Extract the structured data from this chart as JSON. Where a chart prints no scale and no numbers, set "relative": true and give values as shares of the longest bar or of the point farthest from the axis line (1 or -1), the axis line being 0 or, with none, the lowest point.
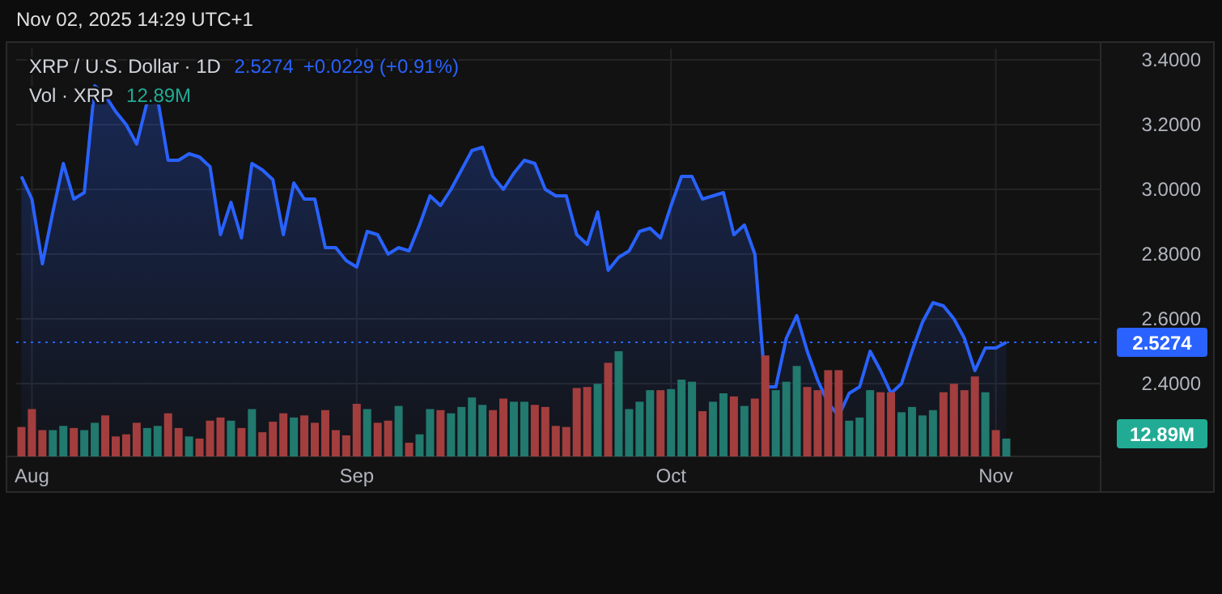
{
  "chart_data": [
    {
      "type": "area",
      "title": "XRP / U.S. Dollar · 1D",
      "annotations": [
        "Nov 02, 2025 14:29 UTC+1",
        "2.5274",
        "+0.0229 (+0.91%)"
      ],
      "x": [
        "2025-07-31",
        "2025-08-01",
        "2025-08-02",
        "2025-08-03",
        "2025-08-04",
        "2025-08-05",
        "2025-08-06",
        "2025-08-07",
        "2025-08-08",
        "2025-08-09",
        "2025-08-10",
        "2025-08-11",
        "2025-08-12",
        "2025-08-13",
        "2025-08-14",
        "2025-08-15",
        "2025-08-16",
        "2025-08-17",
        "2025-08-18",
        "2025-08-19",
        "2025-08-20",
        "2025-08-21",
        "2025-08-22",
        "2025-08-23",
        "2025-08-24",
        "2025-08-25",
        "2025-08-26",
        "2025-08-27",
        "2025-08-28",
        "2025-08-29",
        "2025-08-30",
        "2025-08-31",
        "2025-09-01",
        "2025-09-02",
        "2025-09-03",
        "2025-09-04",
        "2025-09-05",
        "2025-09-06",
        "2025-09-07",
        "2025-09-08",
        "2025-09-09",
        "2025-09-10",
        "2025-09-11",
        "2025-09-12",
        "2025-09-13",
        "2025-09-14",
        "2025-09-15",
        "2025-09-16",
        "2025-09-17",
        "2025-09-18",
        "2025-09-19",
        "2025-09-20",
        "2025-09-21",
        "2025-09-22",
        "2025-09-23",
        "2025-09-24",
        "2025-09-25",
        "2025-09-26",
        "2025-09-27",
        "2025-09-28",
        "2025-09-29",
        "2025-09-30",
        "2025-10-01",
        "2025-10-02",
        "2025-10-03",
        "2025-10-04",
        "2025-10-05",
        "2025-10-06",
        "2025-10-07",
        "2025-10-08",
        "2025-10-09",
        "2025-10-10",
        "2025-10-11",
        "2025-10-12",
        "2025-10-13",
        "2025-10-14",
        "2025-10-15",
        "2025-10-16",
        "2025-10-17",
        "2025-10-18",
        "2025-10-19",
        "2025-10-20",
        "2025-10-21",
        "2025-10-22",
        "2025-10-23",
        "2025-10-24",
        "2025-10-25",
        "2025-10-26",
        "2025-10-27",
        "2025-10-28",
        "2025-10-29",
        "2025-10-30",
        "2025-10-31",
        "2025-11-01",
        "2025-11-02"
      ],
      "series": [
        {
          "color": "#2962ff",
          "values": [
            3.04,
            2.97,
            2.77,
            2.93,
            3.08,
            2.97,
            2.99,
            3.32,
            3.29,
            3.24,
            3.2,
            3.14,
            3.27,
            3.28,
            3.09,
            3.09,
            3.11,
            3.1,
            3.07,
            2.86,
            2.96,
            2.85,
            3.08,
            3.06,
            3.03,
            2.86,
            3.02,
            2.97,
            2.97,
            2.82,
            2.82,
            2.78,
            2.76,
            2.87,
            2.86,
            2.8,
            2.82,
            2.81,
            2.89,
            2.98,
            2.95,
            3.0,
            3.06,
            3.12,
            3.13,
            3.04,
            3.0,
            3.05,
            3.09,
            3.08,
            3.0,
            2.98,
            2.98,
            2.86,
            2.83,
            2.93,
            2.75,
            2.79,
            2.81,
            2.87,
            2.88,
            2.85,
            2.95,
            3.04,
            3.04,
            2.97,
            2.98,
            2.99,
            2.86,
            2.89,
            2.8,
            2.39,
            2.39,
            2.54,
            2.61,
            2.5,
            2.41,
            2.34,
            2.3,
            2.37,
            2.39,
            2.5,
            2.44,
            2.37,
            2.4,
            2.5,
            2.59,
            2.65,
            2.64,
            2.6,
            2.54,
            2.44,
            2.51,
            2.51,
            2.5274
          ]
        }
      ],
      "xlim": [
        "2025-07-30T12:00",
        "2025-11-11"
      ],
      "xticks": [
        {
          "value": "2025-08-01",
          "label": "Aug"
        },
        {
          "value": "2025-09-01",
          "label": "Sep"
        },
        {
          "value": "2025-10-01",
          "label": "Oct"
        },
        {
          "value": "2025-11-01",
          "label": "Nov"
        }
      ],
      "ylim": [
        2.175,
        3.435
      ],
      "yticks": [
        {
          "value": 2.4,
          "label": "2.4000"
        },
        {
          "value": 2.6,
          "label": "2.6000"
        },
        {
          "value": 2.8,
          "label": "2.8000"
        },
        {
          "value": 3.0,
          "label": "3.0000"
        },
        {
          "value": 3.2,
          "label": "3.2000"
        },
        {
          "value": 3.4,
          "label": "3.4000"
        }
      ],
      "ref_lines": [
        {
          "axis": "y",
          "value": 2.5274,
          "label": "2.5274",
          "color": "#2962ff",
          "line_style": "dotted"
        }
      ],
      "grid": true
    },
    {
      "type": "bar",
      "title": "Vol · XRP",
      "annotations": [
        "12.89M"
      ],
      "relative": true,
      "xlim": [
        "2025-07-30T12:00",
        "2025-11-11"
      ],
      "x": [
        "2025-07-31",
        "2025-08-01",
        "2025-08-02",
        "2025-08-03",
        "2025-08-04",
        "2025-08-05",
        "2025-08-06",
        "2025-08-07",
        "2025-08-08",
        "2025-08-09",
        "2025-08-10",
        "2025-08-11",
        "2025-08-12",
        "2025-08-13",
        "2025-08-14",
        "2025-08-15",
        "2025-08-16",
        "2025-08-17",
        "2025-08-18",
        "2025-08-19",
        "2025-08-20",
        "2025-08-21",
        "2025-08-22",
        "2025-08-23",
        "2025-08-24",
        "2025-08-25",
        "2025-08-26",
        "2025-08-27",
        "2025-08-28",
        "2025-08-29",
        "2025-08-30",
        "2025-08-31",
        "2025-09-01",
        "2025-09-02",
        "2025-09-03",
        "2025-09-04",
        "2025-09-05",
        "2025-09-06",
        "2025-09-07",
        "2025-09-08",
        "2025-09-09",
        "2025-09-10",
        "2025-09-11",
        "2025-09-12",
        "2025-09-13",
        "2025-09-14",
        "2025-09-15",
        "2025-09-16",
        "2025-09-17",
        "2025-09-18",
        "2025-09-19",
        "2025-09-20",
        "2025-09-21",
        "2025-09-22",
        "2025-09-23",
        "2025-09-24",
        "2025-09-25",
        "2025-09-26",
        "2025-09-27",
        "2025-09-28",
        "2025-09-29",
        "2025-09-30",
        "2025-10-01",
        "2025-10-02",
        "2025-10-03",
        "2025-10-04",
        "2025-10-05",
        "2025-10-06",
        "2025-10-07",
        "2025-10-08",
        "2025-10-09",
        "2025-10-10",
        "2025-10-11",
        "2025-10-12",
        "2025-10-13",
        "2025-10-14",
        "2025-10-15",
        "2025-10-16",
        "2025-10-17",
        "2025-10-18",
        "2025-10-19",
        "2025-10-20",
        "2025-10-21",
        "2025-10-22",
        "2025-10-23",
        "2025-10-24",
        "2025-10-25",
        "2025-10-26",
        "2025-10-27",
        "2025-10-28",
        "2025-10-29",
        "2025-10-30",
        "2025-10-31",
        "2025-11-01",
        "2025-11-02"
      ],
      "values": [
        0.28,
        0.45,
        0.25,
        0.25,
        0.29,
        0.27,
        0.25,
        0.32,
        0.39,
        0.19,
        0.21,
        0.32,
        0.27,
        0.29,
        0.41,
        0.27,
        0.19,
        0.17,
        0.34,
        0.37,
        0.34,
        0.27,
        0.45,
        0.23,
        0.33,
        0.41,
        0.37,
        0.39,
        0.32,
        0.44,
        0.25,
        0.2,
        0.5,
        0.45,
        0.32,
        0.34,
        0.48,
        0.13,
        0.21,
        0.45,
        0.44,
        0.41,
        0.47,
        0.56,
        0.49,
        0.44,
        0.55,
        0.52,
        0.52,
        0.49,
        0.47,
        0.29,
        0.28,
        0.65,
        0.66,
        0.69,
        0.89,
        1,
        0.45,
        0.52,
        0.63,
        0.63,
        0.64,
        0.73,
        0.71,
        0.43,
        0.52,
        0.6,
        0.57,
        0.48,
        0.55,
        0.96,
        0.63,
        0.71,
        0.86,
        0.66,
        0.63,
        0.82,
        0.82,
        0.34,
        0.37,
        0.63,
        0.61,
        0.61,
        0.42,
        0.47,
        0.39,
        0.44,
        0.61,
        0.69,
        0.63,
        0.76,
        0.61,
        0.25,
        0.17
      ],
      "colors": [
        "#a33e3e",
        "#a33e3e",
        "#a33e3e",
        "#22796e",
        "#22796e",
        "#a33e3e",
        "#22796e",
        "#22796e",
        "#a33e3e",
        "#a33e3e",
        "#a33e3e",
        "#a33e3e",
        "#22796e",
        "#22796e",
        "#a33e3e",
        "#a33e3e",
        "#22796e",
        "#a33e3e",
        "#a33e3e",
        "#a33e3e",
        "#22796e",
        "#a33e3e",
        "#22796e",
        "#a33e3e",
        "#a33e3e",
        "#a33e3e",
        "#22796e",
        "#a33e3e",
        "#a33e3e",
        "#a33e3e",
        "#a33e3e",
        "#a33e3e",
        "#a33e3e",
        "#22796e",
        "#a33e3e",
        "#a33e3e",
        "#22796e",
        "#a33e3e",
        "#22796e",
        "#22796e",
        "#a33e3e",
        "#22796e",
        "#22796e",
        "#22796e",
        "#22796e",
        "#a33e3e",
        "#a33e3e",
        "#22796e",
        "#22796e",
        "#a33e3e",
        "#a33e3e",
        "#a33e3e",
        "#a33e3e",
        "#a33e3e",
        "#a33e3e",
        "#22796e",
        "#a33e3e",
        "#22796e",
        "#22796e",
        "#22796e",
        "#22796e",
        "#a33e3e",
        "#22796e",
        "#22796e",
        "#22796e",
        "#a33e3e",
        "#22796e",
        "#22796e",
        "#a33e3e",
        "#22796e",
        "#a33e3e",
        "#a33e3e",
        "#22796e",
        "#22796e",
        "#22796e",
        "#a33e3e",
        "#a33e3e",
        "#a33e3e",
        "#a33e3e",
        "#22796e",
        "#22796e",
        "#22796e",
        "#a33e3e",
        "#a33e3e",
        "#22796e",
        "#22796e",
        "#22796e",
        "#22796e",
        "#a33e3e",
        "#a33e3e",
        "#a33e3e",
        "#a33e3e",
        "#22796e",
        "#a33e3e",
        "#22796e"
      ]
    }
  ]
}
